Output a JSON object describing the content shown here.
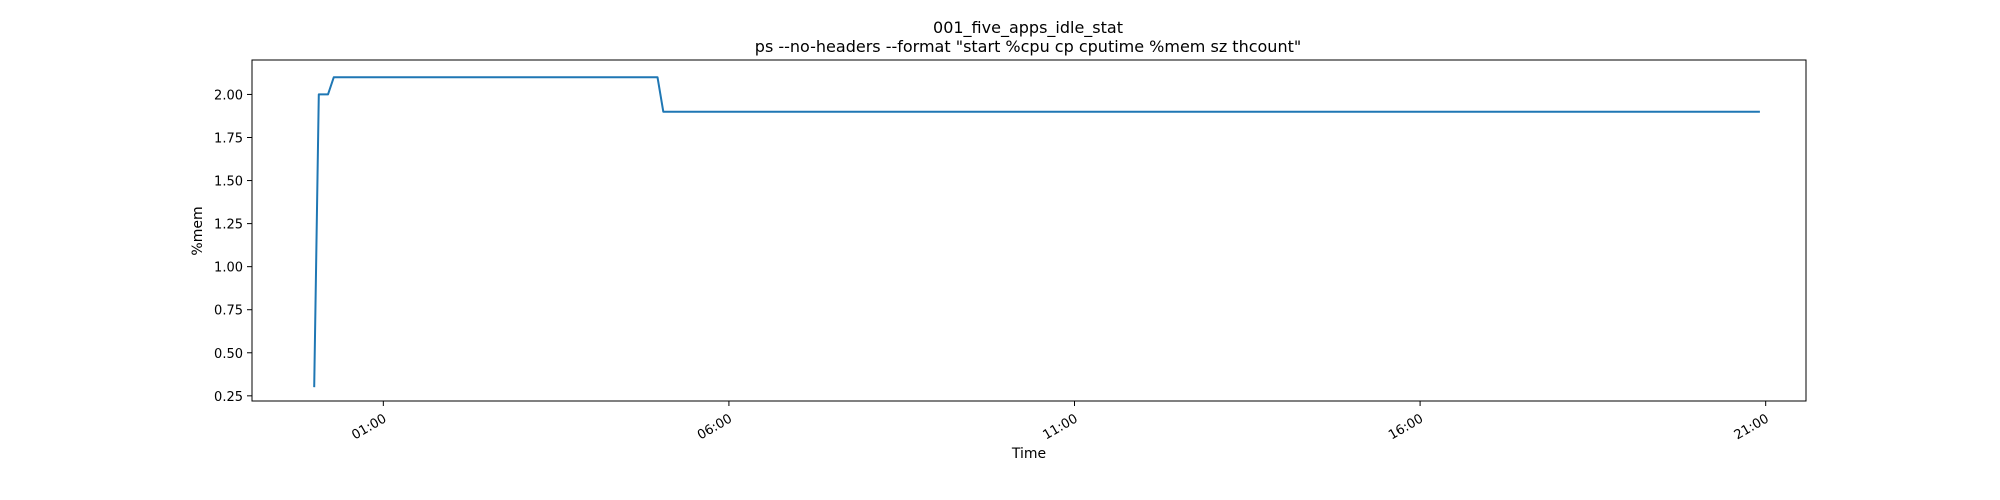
{
  "chart_data": {
    "type": "line",
    "title": "001_five_apps_idle_stat",
    "subtitle": "ps --no-headers --format \"start %cpu cp cputime %mem sz thcount\"",
    "xlabel": "Time",
    "ylabel": "%mem",
    "xlim": [
      "23:06",
      "21:35"
    ],
    "ylim": [
      0.22,
      2.2
    ],
    "x_ticks": [
      "01:00",
      "06:00",
      "11:00",
      "16:00",
      "21:00"
    ],
    "y_ticks": [
      "0.25",
      "0.50",
      "0.75",
      "1.00",
      "1.25",
      "1.50",
      "1.75",
      "2.00"
    ],
    "grid": false,
    "legend": "none",
    "series": [
      {
        "color": "#1f77b4",
        "x": [
          "00:00",
          "00:04",
          "00:12",
          "00:17",
          "00:22",
          "04:58",
          "05:03",
          "20:55"
        ],
        "y": [
          0.3,
          2.0,
          2.0,
          2.1,
          2.1,
          2.1,
          1.9,
          1.9
        ]
      }
    ]
  }
}
